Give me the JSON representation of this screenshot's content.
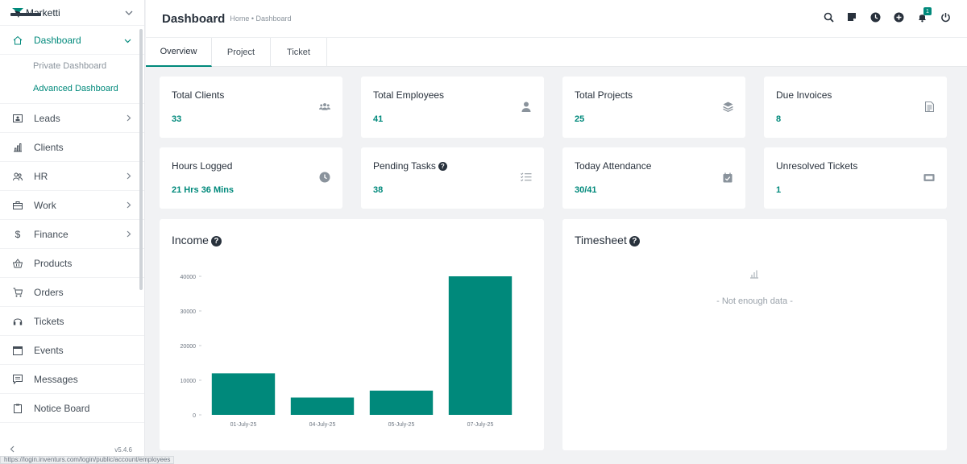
{
  "brand": {
    "name": "Marketti"
  },
  "sidebar": {
    "items": [
      {
        "label": "Dashboard",
        "icon": "home-icon",
        "active": true,
        "children": [
          {
            "label": "Private Dashboard",
            "selected": false
          },
          {
            "label": "Advanced Dashboard",
            "selected": true
          }
        ]
      },
      {
        "label": "Leads",
        "icon": "id-card-icon",
        "arrow": true
      },
      {
        "label": "Clients",
        "icon": "bar-chart-icon",
        "arrow": false
      },
      {
        "label": "HR",
        "icon": "people-icon",
        "arrow": true
      },
      {
        "label": "Work",
        "icon": "briefcase-icon",
        "arrow": true
      },
      {
        "label": "Finance",
        "icon": "dollar-icon",
        "arrow": true
      },
      {
        "label": "Products",
        "icon": "basket-icon",
        "arrow": false
      },
      {
        "label": "Orders",
        "icon": "cart-icon",
        "arrow": false
      },
      {
        "label": "Tickets",
        "icon": "headset-icon",
        "arrow": false
      },
      {
        "label": "Events",
        "icon": "calendar-icon",
        "arrow": false
      },
      {
        "label": "Messages",
        "icon": "message-icon",
        "arrow": false
      },
      {
        "label": "Notice Board",
        "icon": "clipboard-icon",
        "arrow": false
      }
    ],
    "version": "v5.4.6",
    "collapse_icon": "chevron-left-icon"
  },
  "header": {
    "title": "Dashboard",
    "breadcrumb": "Home • Dashboard",
    "notification_count": "1",
    "icons": [
      "search-icon",
      "sticky-note-icon",
      "clock-icon",
      "plus-circle-icon",
      "bell-icon",
      "power-icon"
    ]
  },
  "tabs": [
    {
      "label": "Overview",
      "active": true
    },
    {
      "label": "Project",
      "active": false
    },
    {
      "label": "Ticket",
      "active": false
    }
  ],
  "stats": [
    {
      "title": "Total Clients",
      "value": "33",
      "icon": "users-icon"
    },
    {
      "title": "Total Employees",
      "value": "41",
      "icon": "user-icon"
    },
    {
      "title": "Total Projects",
      "value": "25",
      "icon": "layers-icon"
    },
    {
      "title": "Due Invoices",
      "value": "8",
      "icon": "invoice-icon"
    },
    {
      "title": "Hours Logged",
      "value": "21 Hrs 36 Mins",
      "icon": "clock-icon"
    },
    {
      "title": "Pending Tasks",
      "value": "38",
      "icon": "task-list-icon",
      "help": true
    },
    {
      "title": "Today Attendance",
      "value": "30/41",
      "icon": "calendar-check-icon"
    },
    {
      "title": "Unresolved Tickets",
      "value": "1",
      "icon": "ticket-icon"
    }
  ],
  "income": {
    "title": "Income"
  },
  "timesheet": {
    "title": "Timesheet",
    "empty_text": "- Not enough data -"
  },
  "status_url": "https://login.inventurs.com/login/public/account/employees",
  "colors": {
    "accent": "#00897b",
    "text": "#28313c",
    "muted": "#8a939c"
  },
  "chart_data": {
    "type": "bar",
    "title": "Income",
    "categories": [
      "01-July-25",
      "04-July-25",
      "05-July-25",
      "07-July-25"
    ],
    "values": [
      12000,
      5000,
      7000,
      40000
    ],
    "yticks": [
      0,
      10000,
      20000,
      30000,
      40000
    ],
    "ylim": [
      0,
      40000
    ],
    "xlabel": "",
    "ylabel": "",
    "grid": false,
    "color": "#00897b"
  }
}
